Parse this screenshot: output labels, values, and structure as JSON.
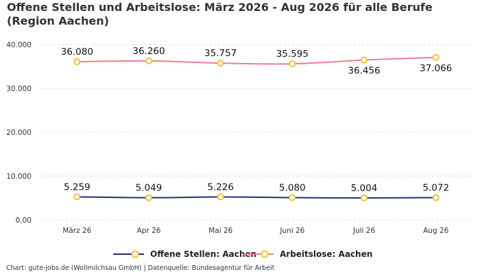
{
  "chart_data": {
    "type": "line",
    "title": "Offene Stellen und Arbeitslose: März 2026 - Aug 2026 für alle Berufe (Region Aachen)",
    "categories": [
      "März 26",
      "Apr 26",
      "Mai 26",
      "Juni 26",
      "Juli 26",
      "Aug 26"
    ],
    "y_ticks": [
      "0,00",
      "10.000",
      "20.000",
      "30.000",
      "40.000"
    ],
    "ylim": [
      0,
      40000
    ],
    "grid": true,
    "legend_position": "bottom",
    "series": [
      {
        "name": "Offene Stellen: Aachen",
        "color": "#1f2f7a",
        "values": [
          5259,
          5049,
          5226,
          5080,
          5004,
          5072
        ],
        "labels": [
          "5.259",
          "5.049",
          "5.226",
          "5.080",
          "5.004",
          "5.072"
        ]
      },
      {
        "name": "Arbeitslose: Aachen",
        "color": "#f07c8a",
        "values": [
          36080,
          36260,
          35757,
          35595,
          36456,
          37066
        ],
        "labels": [
          "36.080",
          "36.260",
          "35.757",
          "35.595",
          "36.456",
          "37.066"
        ]
      }
    ],
    "marker_color": "#f2c230",
    "source": "Chart: gute-jobs.de (Wollmilchsau GmbH) | Datenquelle: Bundesagentur für Arbeit"
  }
}
